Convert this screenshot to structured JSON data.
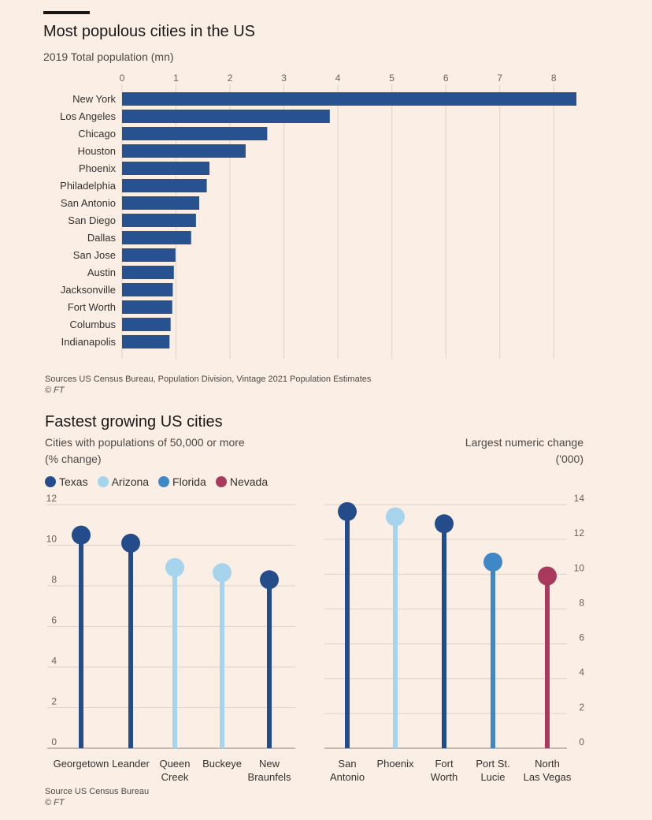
{
  "chart_data": [
    {
      "type": "bar",
      "title": "Most populous cities in the US",
      "subtitle": "2019 Total population (mn)",
      "categories": [
        "New York",
        "Los Angeles",
        "Chicago",
        "Houston",
        "Phoenix",
        "Philadelphia",
        "San Antonio",
        "San Diego",
        "Dallas",
        "San Jose",
        "Austin",
        "Jacksonville",
        "Fort Worth",
        "Columbus",
        "Indianapolis"
      ],
      "values": [
        8.42,
        3.85,
        2.69,
        2.29,
        1.62,
        1.57,
        1.43,
        1.37,
        1.28,
        0.99,
        0.96,
        0.94,
        0.93,
        0.9,
        0.88
      ],
      "xlim": [
        0,
        8.5
      ],
      "xticks": [
        0,
        1,
        2,
        3,
        4,
        5,
        6,
        7,
        8
      ],
      "grid": true,
      "bar_color": "#27528f",
      "source": "Sources US Census Bureau, Population Division, Vintage 2021 Population Estimates",
      "credit": "© FT"
    },
    {
      "type": "lollipop",
      "title": "Fastest growing US cities",
      "subtitle_lines": [
        "Cities with populations of 50,000 or more",
        "(% change)"
      ],
      "legend": [
        {
          "label": "Texas",
          "color": "#244c8a"
        },
        {
          "label": "Arizona",
          "color": "#a6d4ec"
        },
        {
          "label": "Florida",
          "color": "#3f87c7"
        },
        {
          "label": "Nevada",
          "color": "#a93a5e"
        }
      ],
      "legend_placement": "top-left",
      "panels": [
        {
          "axis_side": "left",
          "ylim": [
            0,
            12
          ],
          "yticks": [
            0,
            2,
            4,
            6,
            8,
            10,
            12
          ],
          "points": [
            {
              "label": [
                "Georgetown"
              ],
              "value": 10.5,
              "group": "Texas"
            },
            {
              "label": [
                "Leander"
              ],
              "value": 10.1,
              "group": "Texas"
            },
            {
              "label": [
                "Queen",
                "Creek"
              ],
              "value": 8.9,
              "group": "Arizona"
            },
            {
              "label": [
                "Buckeye"
              ],
              "value": 8.65,
              "group": "Arizona"
            },
            {
              "label": [
                "New",
                "Braunfels"
              ],
              "value": 8.3,
              "group": "Texas"
            }
          ]
        },
        {
          "axis_side": "right",
          "subtitle_lines": [
            "Largest numeric change",
            "('000)"
          ],
          "ylim": [
            0,
            14
          ],
          "yticks": [
            0,
            2,
            4,
            6,
            8,
            10,
            12,
            14
          ],
          "points": [
            {
              "label": [
                "San",
                "Antonio"
              ],
              "value": 13.6,
              "group": "Texas"
            },
            {
              "label": [
                "Phoenix"
              ],
              "value": 13.3,
              "group": "Arizona"
            },
            {
              "label": [
                "Fort",
                "Worth"
              ],
              "value": 12.9,
              "group": "Texas"
            },
            {
              "label": [
                "Port St.",
                "Lucie"
              ],
              "value": 10.7,
              "group": "Florida"
            },
            {
              "label": [
                "North",
                "Las Vegas"
              ],
              "value": 9.9,
              "group": "Nevada"
            }
          ]
        }
      ],
      "source": "Source US Census Bureau",
      "credit": "© FT"
    }
  ]
}
